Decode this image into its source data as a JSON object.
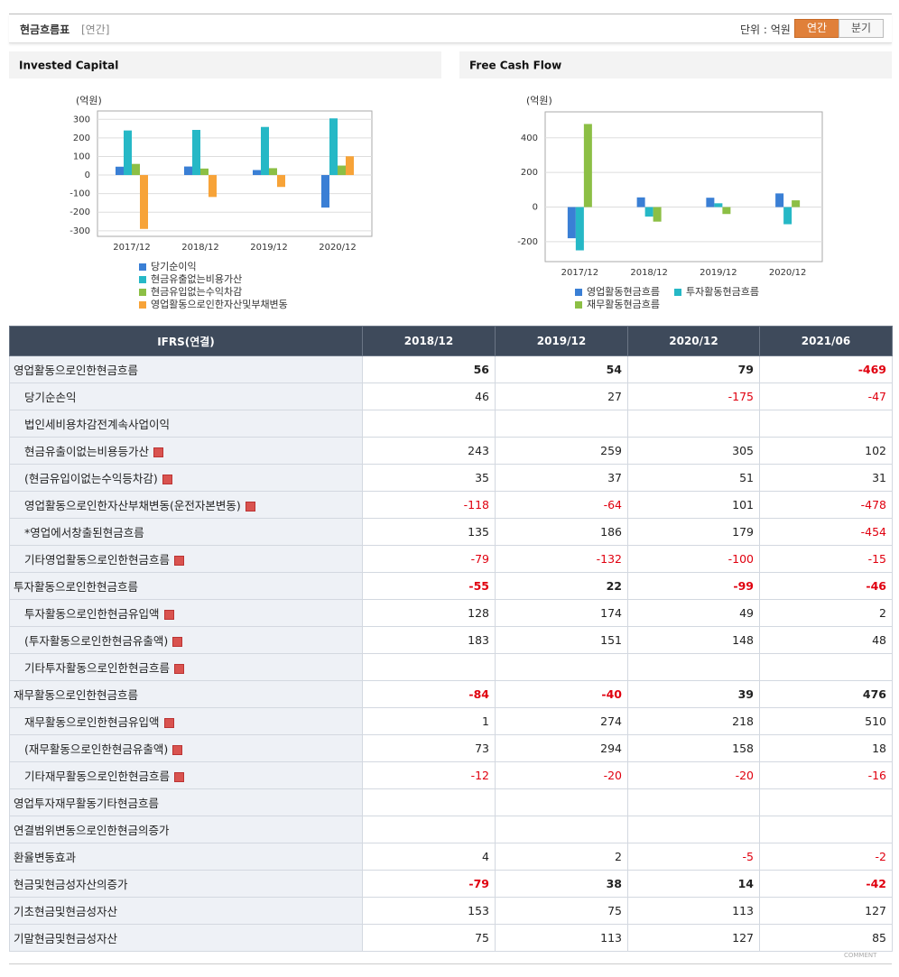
{
  "header": {
    "title": "현금흐름표",
    "period": "[연간]",
    "unit": "단위 : 억원",
    "tabs": [
      "연간",
      "분기"
    ]
  },
  "chart_data": [
    {
      "type": "bar",
      "title": "Invested Capital",
      "y_label": "(억원)",
      "categories": [
        "2017/12",
        "2018/12",
        "2019/12",
        "2020/12"
      ],
      "series": [
        {
          "name": "당기순이익",
          "color": "#3a7fd5",
          "values": [
            45,
            46,
            27,
            -175
          ]
        },
        {
          "name": "현금유출없는비용가산",
          "color": "#26b8c6",
          "values": [
            240,
            243,
            259,
            305
          ]
        },
        {
          "name": "현금유입없는수익차감",
          "color": "#8cbf45",
          "values": [
            60,
            35,
            37,
            51
          ]
        },
        {
          "name": "영업활동으로인한자산및부채변동",
          "color": "#f7a338",
          "values": [
            -290,
            -118,
            -64,
            101
          ]
        }
      ],
      "ylim": [
        -330,
        345
      ],
      "yticks": [
        -300,
        -200,
        -100,
        0,
        100,
        200,
        300
      ],
      "grid": true
    },
    {
      "type": "bar",
      "title": "Free Cash Flow",
      "y_label": "(억원)",
      "categories": [
        "2017/12",
        "2018/12",
        "2019/12",
        "2020/12"
      ],
      "series": [
        {
          "name": "영업활동현금흐름",
          "color": "#3a7fd5",
          "values": [
            -180,
            56,
            54,
            79
          ]
        },
        {
          "name": "투자활동현금흐름",
          "color": "#26b8c6",
          "values": [
            -250,
            -55,
            22,
            -99
          ]
        },
        {
          "name": "재무활동현금흐름",
          "color": "#8cbf45",
          "values": [
            480,
            -84,
            -40,
            39
          ]
        }
      ],
      "ylim": [
        -315,
        550
      ],
      "yticks": [
        -200,
        0,
        200,
        400
      ],
      "grid": true
    }
  ],
  "table": {
    "columns": [
      "IFRS(연결)",
      "2018/12",
      "2019/12",
      "2020/12",
      "2021/06"
    ],
    "rows": [
      {
        "label": "영업활동으로인한현금흐름",
        "values": [
          56,
          54,
          79,
          -469
        ]
      },
      {
        "label": "당기순손익",
        "values": [
          46,
          27,
          -175,
          -47
        ]
      },
      {
        "label": "법인세비용차감전계속사업이익",
        "values": [
          null,
          null,
          null,
          null
        ]
      },
      {
        "label": "현금유출이없는비용등가산",
        "values": [
          243,
          259,
          305,
          102
        ]
      },
      {
        "label": "(현금유입이없는수익등차감)",
        "values": [
          35,
          37,
          51,
          31
        ]
      },
      {
        "label": "영업활동으로인한자산부채변동(운전자본변동)",
        "values": [
          -118,
          -64,
          101,
          -478
        ]
      },
      {
        "label": "*영업에서창출된현금흐름",
        "values": [
          135,
          186,
          179,
          -454
        ]
      },
      {
        "label": "기타영업활동으로인한현금흐름",
        "values": [
          -79,
          -132,
          -100,
          -15
        ]
      },
      {
        "label": "투자활동으로인한현금흐름",
        "values": [
          -55,
          22,
          -99,
          -46
        ]
      },
      {
        "label": "투자활동으로인한현금유입액",
        "values": [
          128,
          174,
          49,
          2
        ]
      },
      {
        "label": "(투자활동으로인한현금유출액)",
        "values": [
          183,
          151,
          148,
          48
        ]
      },
      {
        "label": "기타투자활동으로인한현금흐름",
        "values": [
          null,
          null,
          null,
          null
        ]
      },
      {
        "label": "재무활동으로인한현금흐름",
        "values": [
          -84,
          -40,
          39,
          476
        ]
      },
      {
        "label": "재무활동으로인한현금유입액",
        "values": [
          1,
          274,
          218,
          510
        ]
      },
      {
        "label": "(재무활동으로인한현금유출액)",
        "values": [
          73,
          294,
          158,
          18
        ]
      },
      {
        "label": "기타재무활동으로인한현금흐름",
        "values": [
          -12,
          -20,
          -20,
          -16
        ]
      },
      {
        "label": "영업투자재무활동기타현금흐름",
        "values": [
          null,
          null,
          null,
          null
        ]
      },
      {
        "label": "연결범위변동으로인한현금의증가",
        "values": [
          null,
          null,
          null,
          null
        ]
      },
      {
        "label": "환율변동효과",
        "values": [
          4,
          2,
          -5,
          -2
        ]
      },
      {
        "label": "현금및현금성자산의증가",
        "values": [
          -79,
          38,
          14,
          -42
        ]
      },
      {
        "label": "기초현금및현금성자산",
        "values": [
          153,
          75,
          113,
          127
        ]
      },
      {
        "label": "기말현금및현금성자산",
        "values": [
          75,
          113,
          127,
          85
        ]
      }
    ]
  },
  "comment": "COMMENT"
}
